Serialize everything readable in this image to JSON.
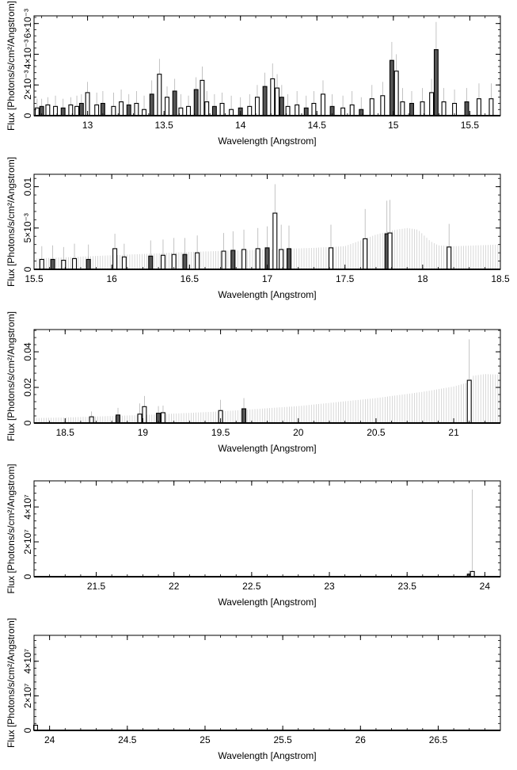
{
  "chart_data": [
    {
      "type": "bar",
      "xlabel": "Wavelength [Angstrom]",
      "ylabel": "Flux [Photons/s/cm²/Angstrom]",
      "xlim": [
        12.65,
        15.7
      ],
      "ylim": [
        0,
        0.0065
      ],
      "xticks": [
        13,
        13.5,
        14,
        14.5,
        15,
        15.5
      ],
      "xtick_labels": [
        "13",
        "13.5",
        "14",
        "14.5",
        "15",
        "15.5"
      ],
      "yticks": [
        0,
        0.002,
        0.004,
        0.006
      ],
      "ytick_labels": [
        "0",
        "2×10⁻³",
        "4×10⁻³",
        "6×10⁻³"
      ],
      "x": [
        12.67,
        12.7,
        12.74,
        12.79,
        12.84,
        12.89,
        12.93,
        12.96,
        13.0,
        13.06,
        13.1,
        13.17,
        13.22,
        13.27,
        13.32,
        13.37,
        13.42,
        13.47,
        13.52,
        13.57,
        13.61,
        13.66,
        13.71,
        13.75,
        13.78,
        13.83,
        13.88,
        13.94,
        14.0,
        14.06,
        14.11,
        14.16,
        14.21,
        14.24,
        14.27,
        14.31,
        14.37,
        14.43,
        14.48,
        14.54,
        14.6,
        14.67,
        14.73,
        14.79,
        14.86,
        14.93,
        14.99,
        15.02,
        15.06,
        15.12,
        15.19,
        15.25,
        15.28,
        15.33,
        15.4,
        15.48,
        15.56,
        15.64
      ],
      "values": [
        0.0005,
        0.0006,
        0.0007,
        0.0006,
        0.0005,
        0.0007,
        0.0006,
        0.0008,
        0.0015,
        0.0007,
        0.0008,
        0.0006,
        0.0009,
        0.0007,
        0.0008,
        0.0004,
        0.0014,
        0.0027,
        0.0012,
        0.0016,
        0.0005,
        0.0006,
        0.0017,
        0.0023,
        0.0009,
        0.0006,
        0.0008,
        0.0004,
        0.0005,
        0.0006,
        0.0012,
        0.0019,
        0.0024,
        0.0018,
        0.0012,
        0.0006,
        0.0007,
        0.0005,
        0.0008,
        0.0014,
        0.0006,
        0.0005,
        0.0007,
        0.0004,
        0.0011,
        0.0013,
        0.0036,
        0.0029,
        0.0009,
        0.0008,
        0.0009,
        0.0015,
        0.0043,
        0.0009,
        0.0008,
        0.0009,
        0.0011,
        0.0011
      ],
      "errors": [
        0.0006,
        0.0005,
        0.0005,
        0.0007,
        0.0006,
        0.0005,
        0.0007,
        0.0006,
        0.0007,
        0.0008,
        0.0008,
        0.0009,
        0.0008,
        0.0007,
        0.0008,
        0.0009,
        0.0009,
        0.001,
        0.0007,
        0.0008,
        0.0009,
        0.0007,
        0.0008,
        0.0009,
        0.0007,
        0.0008,
        0.0007,
        0.0009,
        0.0007,
        0.0008,
        0.0008,
        0.0009,
        0.001,
        0.0009,
        0.0008,
        0.0008,
        0.0009,
        0.0008,
        0.0008,
        0.0009,
        0.0008,
        0.0008,
        0.0009,
        0.0008,
        0.0009,
        0.0009,
        0.0012,
        0.0011,
        0.0009,
        0.0008,
        0.0009,
        0.0009,
        0.0018,
        0.0009,
        0.0009,
        0.0009,
        0.001,
        0.001
      ]
    },
    {
      "type": "bar",
      "xlabel": "Wavelength [Angstrom]",
      "ylabel": "Flux [Photons/s/cm²/Angstrom]",
      "xlim": [
        15.5,
        18.5
      ],
      "ylim": [
        0,
        0.0115
      ],
      "xticks": [
        15.5,
        16,
        16.5,
        17,
        17.5,
        18,
        18.5
      ],
      "xtick_labels": [
        "15.5",
        "16",
        "16.5",
        "17",
        "17.5",
        "18",
        "18.5"
      ],
      "yticks": [
        0,
        0.005,
        0.01
      ],
      "ytick_labels": [
        "0",
        "5×10⁻³",
        "0.01"
      ],
      "x": [
        15.55,
        15.62,
        15.69,
        15.76,
        15.85,
        16.02,
        16.08,
        16.25,
        16.33,
        16.4,
        16.47,
        16.55,
        16.72,
        16.78,
        16.85,
        16.94,
        17.0,
        17.05,
        17.09,
        17.14,
        17.41,
        17.63,
        17.77,
        17.79,
        18.17
      ],
      "values": [
        0.0012,
        0.0012,
        0.0011,
        0.0013,
        0.0012,
        0.0025,
        0.0015,
        0.0016,
        0.0017,
        0.0018,
        0.0018,
        0.002,
        0.0022,
        0.0023,
        0.0024,
        0.0025,
        0.0026,
        0.0068,
        0.0024,
        0.0025,
        0.0026,
        0.0037,
        0.0043,
        0.0044,
        0.0027
      ],
      "errors": [
        0.0016,
        0.0017,
        0.0016,
        0.0018,
        0.0018,
        0.0018,
        0.0016,
        0.0019,
        0.0019,
        0.002,
        0.002,
        0.0021,
        0.0022,
        0.0023,
        0.0024,
        0.0025,
        0.0026,
        0.0035,
        0.003,
        0.0028,
        0.0028,
        0.0036,
        0.004,
        0.004,
        0.0028
      ],
      "upper_limit_envelope": {
        "x": [
          15.5,
          16.0,
          16.5,
          17.0,
          17.3,
          17.5,
          17.6,
          17.7,
          17.8,
          17.9,
          17.97,
          18.05,
          18.1,
          18.2,
          18.5
        ],
        "values": [
          0.0013,
          0.0017,
          0.0021,
          0.0024,
          0.0026,
          0.0028,
          0.0035,
          0.0042,
          0.0047,
          0.005,
          0.0048,
          0.0034,
          0.0029,
          0.0028,
          0.003
        ]
      }
    },
    {
      "type": "bar",
      "xlabel": "Wavelength [Angstrom]",
      "ylabel": "Flux [Photons/s/cm²/Angstrom]",
      "xlim": [
        18.3,
        21.3
      ],
      "ylim": [
        0,
        0.0525
      ],
      "xticks": [
        18.5,
        19,
        19.5,
        20,
        20.5,
        21
      ],
      "xtick_labels": [
        "18.5",
        "19",
        "19.5",
        "20",
        "20.5",
        "21"
      ],
      "yticks": [
        0,
        0.02,
        0.04
      ],
      "ytick_labels": [
        "0",
        "0.02",
        "0.04"
      ],
      "x": [
        18.67,
        18.84,
        18.98,
        19.01,
        19.1,
        19.13,
        19.5,
        19.65,
        21.1
      ],
      "values": [
        0.0035,
        0.0045,
        0.005,
        0.0092,
        0.0055,
        0.0058,
        0.007,
        0.008,
        0.024
      ],
      "errors": [
        0.003,
        0.004,
        0.006,
        0.006,
        0.004,
        0.004,
        0.006,
        0.006,
        0.023
      ],
      "upper_limit_envelope": {
        "x": [
          18.3,
          18.5,
          19.0,
          19.5,
          20.0,
          20.5,
          20.8,
          21.0,
          21.1,
          21.12,
          21.2,
          21.3
        ],
        "values": [
          0.0028,
          0.0031,
          0.0045,
          0.0065,
          0.0095,
          0.014,
          0.0175,
          0.0205,
          0.023,
          0.0265,
          0.0275,
          0.0272
        ]
      }
    },
    {
      "type": "bar",
      "xlabel": "Wavelength [Angstrom]",
      "ylabel": "Flux [Photons/s/cm²/Angstrom]",
      "xlim": [
        21.1,
        24.1
      ],
      "ylim": [
        0,
        55000000
      ],
      "xticks": [
        21.5,
        22,
        22.5,
        23,
        23.5,
        24
      ],
      "xtick_labels": [
        "21.5",
        "22",
        "22.5",
        "23",
        "23.5",
        "24"
      ],
      "yticks": [
        0,
        20000000,
        40000000
      ],
      "ytick_labels": [
        "0",
        "2×10⁷",
        "4×10⁷"
      ],
      "x": [
        23.88,
        23.9,
        23.92
      ],
      "values": [
        0,
        1500000,
        3000000
      ],
      "errors": [
        1000000,
        2000000,
        47000000
      ]
    },
    {
      "type": "bar",
      "xlabel": "Wavelength [Angstrom]",
      "ylabel": "Flux [Photons/s/cm²/Angstrom]",
      "xlim": [
        23.9,
        26.9
      ],
      "ylim": [
        0,
        55000000
      ],
      "xticks": [
        24,
        24.5,
        25,
        25.5,
        26,
        26.5
      ],
      "xtick_labels": [
        "24",
        "24.5",
        "25",
        "25.5",
        "26",
        "26.5"
      ],
      "yticks": [
        0,
        20000000,
        40000000
      ],
      "ytick_labels": [
        "0",
        "2×10⁷",
        "4×10⁷"
      ],
      "x": [
        23.91
      ],
      "values": [
        3000000
      ],
      "errors": [
        47000000
      ]
    }
  ]
}
